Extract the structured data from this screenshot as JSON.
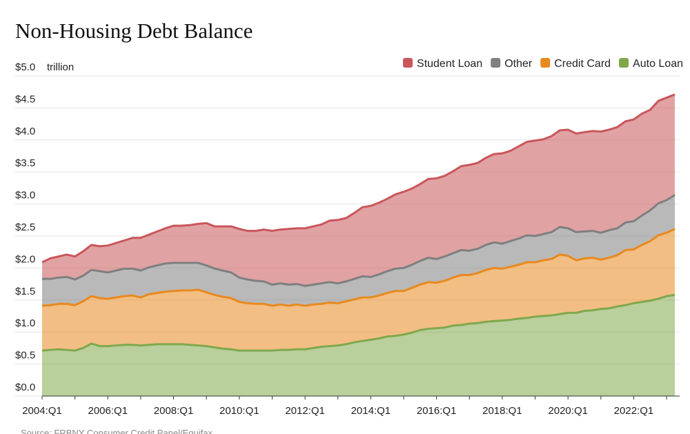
{
  "chart_data": {
    "type": "stacked-area",
    "title": "Non-Housing Debt Balance",
    "y_unit": "trillion",
    "source": "Source: FRBNY Consumer Credit Panel/Equifax",
    "legend": "top-right",
    "grid": true,
    "categories": [
      "2004:Q1",
      null,
      null,
      null,
      null,
      null,
      null,
      null,
      "2006:Q1",
      null,
      null,
      null,
      null,
      null,
      null,
      null,
      "2008:Q1",
      null,
      null,
      null,
      null,
      null,
      null,
      null,
      "2010:Q1",
      null,
      null,
      null,
      null,
      null,
      null,
      null,
      "2012:Q1",
      null,
      null,
      null,
      null,
      null,
      null,
      null,
      "2014:Q1",
      null,
      null,
      null,
      null,
      null,
      null,
      null,
      "2016:Q1",
      null,
      null,
      null,
      null,
      null,
      null,
      null,
      "2018:Q1",
      null,
      null,
      null,
      null,
      null,
      null,
      null,
      "2020:Q1",
      null,
      null,
      null,
      null,
      null,
      null,
      null,
      "2022:Q1",
      null,
      null,
      null,
      null,
      null
    ],
    "ylim": [
      0,
      5
    ],
    "yticks": [
      {
        "value": 0,
        "label": "$0.0"
      },
      {
        "value": 0.5,
        "label": "$0.5"
      },
      {
        "value": 1,
        "label": "$1.0"
      },
      {
        "value": 1.5,
        "label": "$1.5"
      },
      {
        "value": 2,
        "label": "$2.0"
      },
      {
        "value": 2.5,
        "label": "$2.5"
      },
      {
        "value": 3,
        "label": "$3.0"
      },
      {
        "value": 3.5,
        "label": "$3.5"
      },
      {
        "value": 4,
        "label": "$4.0"
      },
      {
        "value": 4.5,
        "label": "$4.5"
      },
      {
        "value": 5,
        "label": "$5.0"
      }
    ],
    "series": [
      {
        "name": "Student Loan",
        "color": "#c9565a",
        "values": [
          0.26,
          0.32,
          0.33,
          0.35,
          0.36,
          0.38,
          0.39,
          0.39,
          0.42,
          0.43,
          0.44,
          0.48,
          0.51,
          0.51,
          0.53,
          0.55,
          0.58,
          0.58,
          0.59,
          0.61,
          0.66,
          0.66,
          0.69,
          0.72,
          0.76,
          0.76,
          0.78,
          0.81,
          0.84,
          0.84,
          0.87,
          0.87,
          0.9,
          0.91,
          0.92,
          0.96,
          0.99,
          0.99,
          1.03,
          1.08,
          1.11,
          1.12,
          1.13,
          1.16,
          1.19,
          1.19,
          1.2,
          1.23,
          1.26,
          1.26,
          1.28,
          1.31,
          1.34,
          1.34,
          1.36,
          1.38,
          1.41,
          1.41,
          1.44,
          1.46,
          1.49,
          1.48,
          1.5,
          1.51,
          1.54,
          1.54,
          1.55,
          1.56,
          1.58,
          1.57,
          1.58,
          1.58,
          1.59,
          1.59,
          1.57,
          1.6,
          1.6,
          1.57
        ]
      },
      {
        "name": "Other",
        "color": "#7f7f7f",
        "values": [
          0.42,
          0.41,
          0.41,
          0.42,
          0.4,
          0.4,
          0.41,
          0.42,
          0.41,
          0.42,
          0.43,
          0.42,
          0.42,
          0.42,
          0.43,
          0.44,
          0.44,
          0.43,
          0.43,
          0.42,
          0.42,
          0.41,
          0.41,
          0.4,
          0.38,
          0.37,
          0.36,
          0.35,
          0.33,
          0.33,
          0.33,
          0.32,
          0.31,
          0.31,
          0.32,
          0.32,
          0.31,
          0.31,
          0.32,
          0.33,
          0.32,
          0.33,
          0.34,
          0.35,
          0.36,
          0.36,
          0.37,
          0.38,
          0.37,
          0.38,
          0.38,
          0.39,
          0.38,
          0.38,
          0.39,
          0.4,
          0.39,
          0.4,
          0.41,
          0.42,
          0.41,
          0.41,
          0.42,
          0.43,
          0.43,
          0.44,
          0.42,
          0.42,
          0.42,
          0.43,
          0.42,
          0.43,
          0.44,
          0.46,
          0.48,
          0.5,
          0.51,
          0.53
        ]
      },
      {
        "name": "Credit Card",
        "color": "#e8891e",
        "values": [
          0.7,
          0.7,
          0.71,
          0.72,
          0.71,
          0.73,
          0.74,
          0.75,
          0.74,
          0.75,
          0.76,
          0.77,
          0.75,
          0.79,
          0.8,
          0.82,
          0.83,
          0.84,
          0.85,
          0.87,
          0.84,
          0.82,
          0.81,
          0.8,
          0.76,
          0.74,
          0.73,
          0.73,
          0.7,
          0.71,
          0.69,
          0.7,
          0.68,
          0.68,
          0.67,
          0.68,
          0.66,
          0.67,
          0.67,
          0.68,
          0.66,
          0.67,
          0.68,
          0.7,
          0.68,
          0.7,
          0.71,
          0.73,
          0.71,
          0.73,
          0.75,
          0.78,
          0.76,
          0.78,
          0.81,
          0.83,
          0.81,
          0.83,
          0.84,
          0.87,
          0.85,
          0.87,
          0.88,
          0.93,
          0.89,
          0.82,
          0.82,
          0.82,
          0.77,
          0.79,
          0.8,
          0.86,
          0.84,
          0.89,
          0.93,
          0.99,
          0.99,
          1.03
        ]
      },
      {
        "name": "Auto Loan",
        "color": "#7fa84b",
        "values": [
          0.71,
          0.72,
          0.73,
          0.72,
          0.71,
          0.75,
          0.82,
          0.78,
          0.78,
          0.79,
          0.8,
          0.8,
          0.79,
          0.8,
          0.81,
          0.81,
          0.81,
          0.81,
          0.8,
          0.79,
          0.78,
          0.76,
          0.74,
          0.73,
          0.71,
          0.71,
          0.71,
          0.71,
          0.71,
          0.72,
          0.72,
          0.73,
          0.73,
          0.75,
          0.77,
          0.78,
          0.79,
          0.81,
          0.84,
          0.86,
          0.88,
          0.9,
          0.93,
          0.94,
          0.96,
          0.99,
          1.03,
          1.05,
          1.06,
          1.07,
          1.1,
          1.11,
          1.13,
          1.14,
          1.16,
          1.17,
          1.18,
          1.19,
          1.21,
          1.22,
          1.24,
          1.25,
          1.26,
          1.28,
          1.3,
          1.3,
          1.33,
          1.34,
          1.36,
          1.37,
          1.4,
          1.42,
          1.45,
          1.47,
          1.49,
          1.52,
          1.56,
          1.58
        ]
      }
    ]
  }
}
